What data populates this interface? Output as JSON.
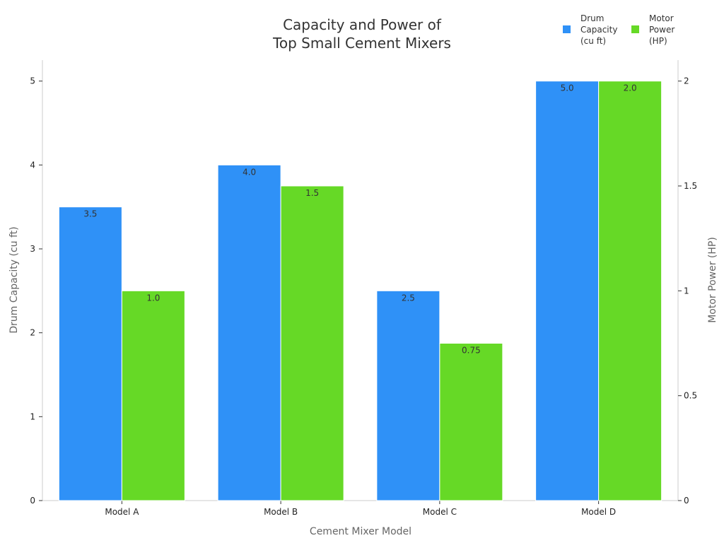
{
  "chart_data": {
    "type": "bar",
    "title_lines": [
      "Capacity and Power of",
      "Top Small Cement Mixers"
    ],
    "xlabel": "Cement Mixer Model",
    "ylabel_left": "Drum Capacity (cu ft)",
    "ylabel_right": "Motor Power (HP)",
    "categories": [
      "Model A",
      "Model B",
      "Model C",
      "Model D"
    ],
    "y_left_lim": [
      0,
      5.25
    ],
    "y_right_lim": [
      0,
      2.1
    ],
    "y_left_ticks": [
      0,
      1,
      2,
      3,
      4,
      5
    ],
    "y_right_ticks": [
      {
        "value": 0,
        "label": "0"
      },
      {
        "value": 0.5,
        "label": "0.5"
      },
      {
        "value": 1,
        "label": "1"
      },
      {
        "value": 1.5,
        "label": "1.5"
      },
      {
        "value": 2,
        "label": "2"
      }
    ],
    "grid": false,
    "legend_position": "top-right",
    "series": [
      {
        "name_lines": [
          "Drum",
          "Capacity",
          "(cu ft)"
        ],
        "axis": "left",
        "color": "#2f91f7",
        "values": [
          3.5,
          4.0,
          2.5,
          5.0
        ],
        "labels": [
          "3.5",
          "4.0",
          "2.5",
          "5.0"
        ]
      },
      {
        "name_lines": [
          "Motor",
          "Power",
          "(HP)"
        ],
        "axis": "right",
        "color": "#66d926",
        "values": [
          1.0,
          1.5,
          0.75,
          2.0
        ],
        "labels": [
          "1.0",
          "1.5",
          "0.75",
          "2.0"
        ]
      }
    ]
  }
}
